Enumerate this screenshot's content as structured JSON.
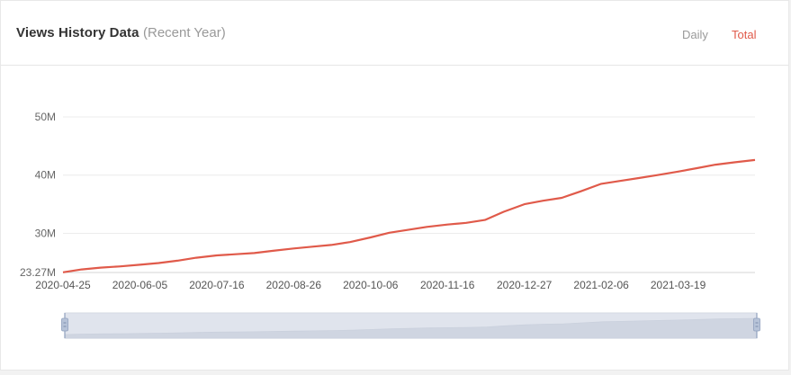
{
  "header": {
    "title": "Views History Data",
    "subtitle": "(Recent Year)",
    "tabs": [
      {
        "label": "Daily",
        "active": false
      },
      {
        "label": "Total",
        "active": true
      }
    ]
  },
  "colors": {
    "line": "#e05a4a",
    "active_tab": "#e05a4a",
    "grid": "#ececec",
    "slider_fill": "#d5dae5",
    "slider_handle": "#b7c3d8"
  },
  "chart_data": {
    "type": "line",
    "title": "",
    "xlabel": "",
    "ylabel": "",
    "x_start": "2020-04-25",
    "x_end": "2021-04-29",
    "ylim": [
      23.27,
      50
    ],
    "y_ticks": [
      {
        "value": 50,
        "label": "50M"
      },
      {
        "value": 40,
        "label": "40M"
      },
      {
        "value": 30,
        "label": "30M"
      },
      {
        "value": 23.27,
        "label": "23.27M"
      }
    ],
    "x_ticks": [
      "2020-04-25",
      "2020-06-05",
      "2020-07-16",
      "2020-08-26",
      "2020-10-06",
      "2020-11-16",
      "2020-12-27",
      "2021-02-06",
      "2021-03-19"
    ],
    "grid": true,
    "series": [
      {
        "name": "",
        "x": [
          "2020-04-25",
          "2020-05-05",
          "2020-05-15",
          "2020-05-25",
          "2020-06-05",
          "2020-06-15",
          "2020-06-25",
          "2020-07-05",
          "2020-07-16",
          "2020-07-26",
          "2020-08-05",
          "2020-08-15",
          "2020-08-26",
          "2020-09-05",
          "2020-09-15",
          "2020-09-25",
          "2020-10-06",
          "2020-10-16",
          "2020-10-26",
          "2020-11-05",
          "2020-11-16",
          "2020-11-26",
          "2020-12-06",
          "2020-12-16",
          "2020-12-27",
          "2021-01-06",
          "2021-01-16",
          "2021-01-26",
          "2021-02-06",
          "2021-02-16",
          "2021-02-26",
          "2021-03-08",
          "2021-03-19",
          "2021-03-29",
          "2021-04-08",
          "2021-04-18",
          "2021-04-29"
        ],
        "values": [
          23.3,
          23.8,
          24.1,
          24.3,
          24.6,
          24.9,
          25.3,
          25.8,
          26.2,
          26.4,
          26.6,
          27.0,
          27.4,
          27.7,
          28.0,
          28.5,
          29.3,
          30.1,
          30.6,
          31.1,
          31.5,
          31.8,
          32.3,
          33.7,
          35.0,
          35.6,
          36.1,
          37.2,
          38.5,
          39.0,
          39.5,
          40.0,
          40.6,
          41.2,
          41.8,
          42.2,
          42.6
        ]
      }
    ]
  }
}
